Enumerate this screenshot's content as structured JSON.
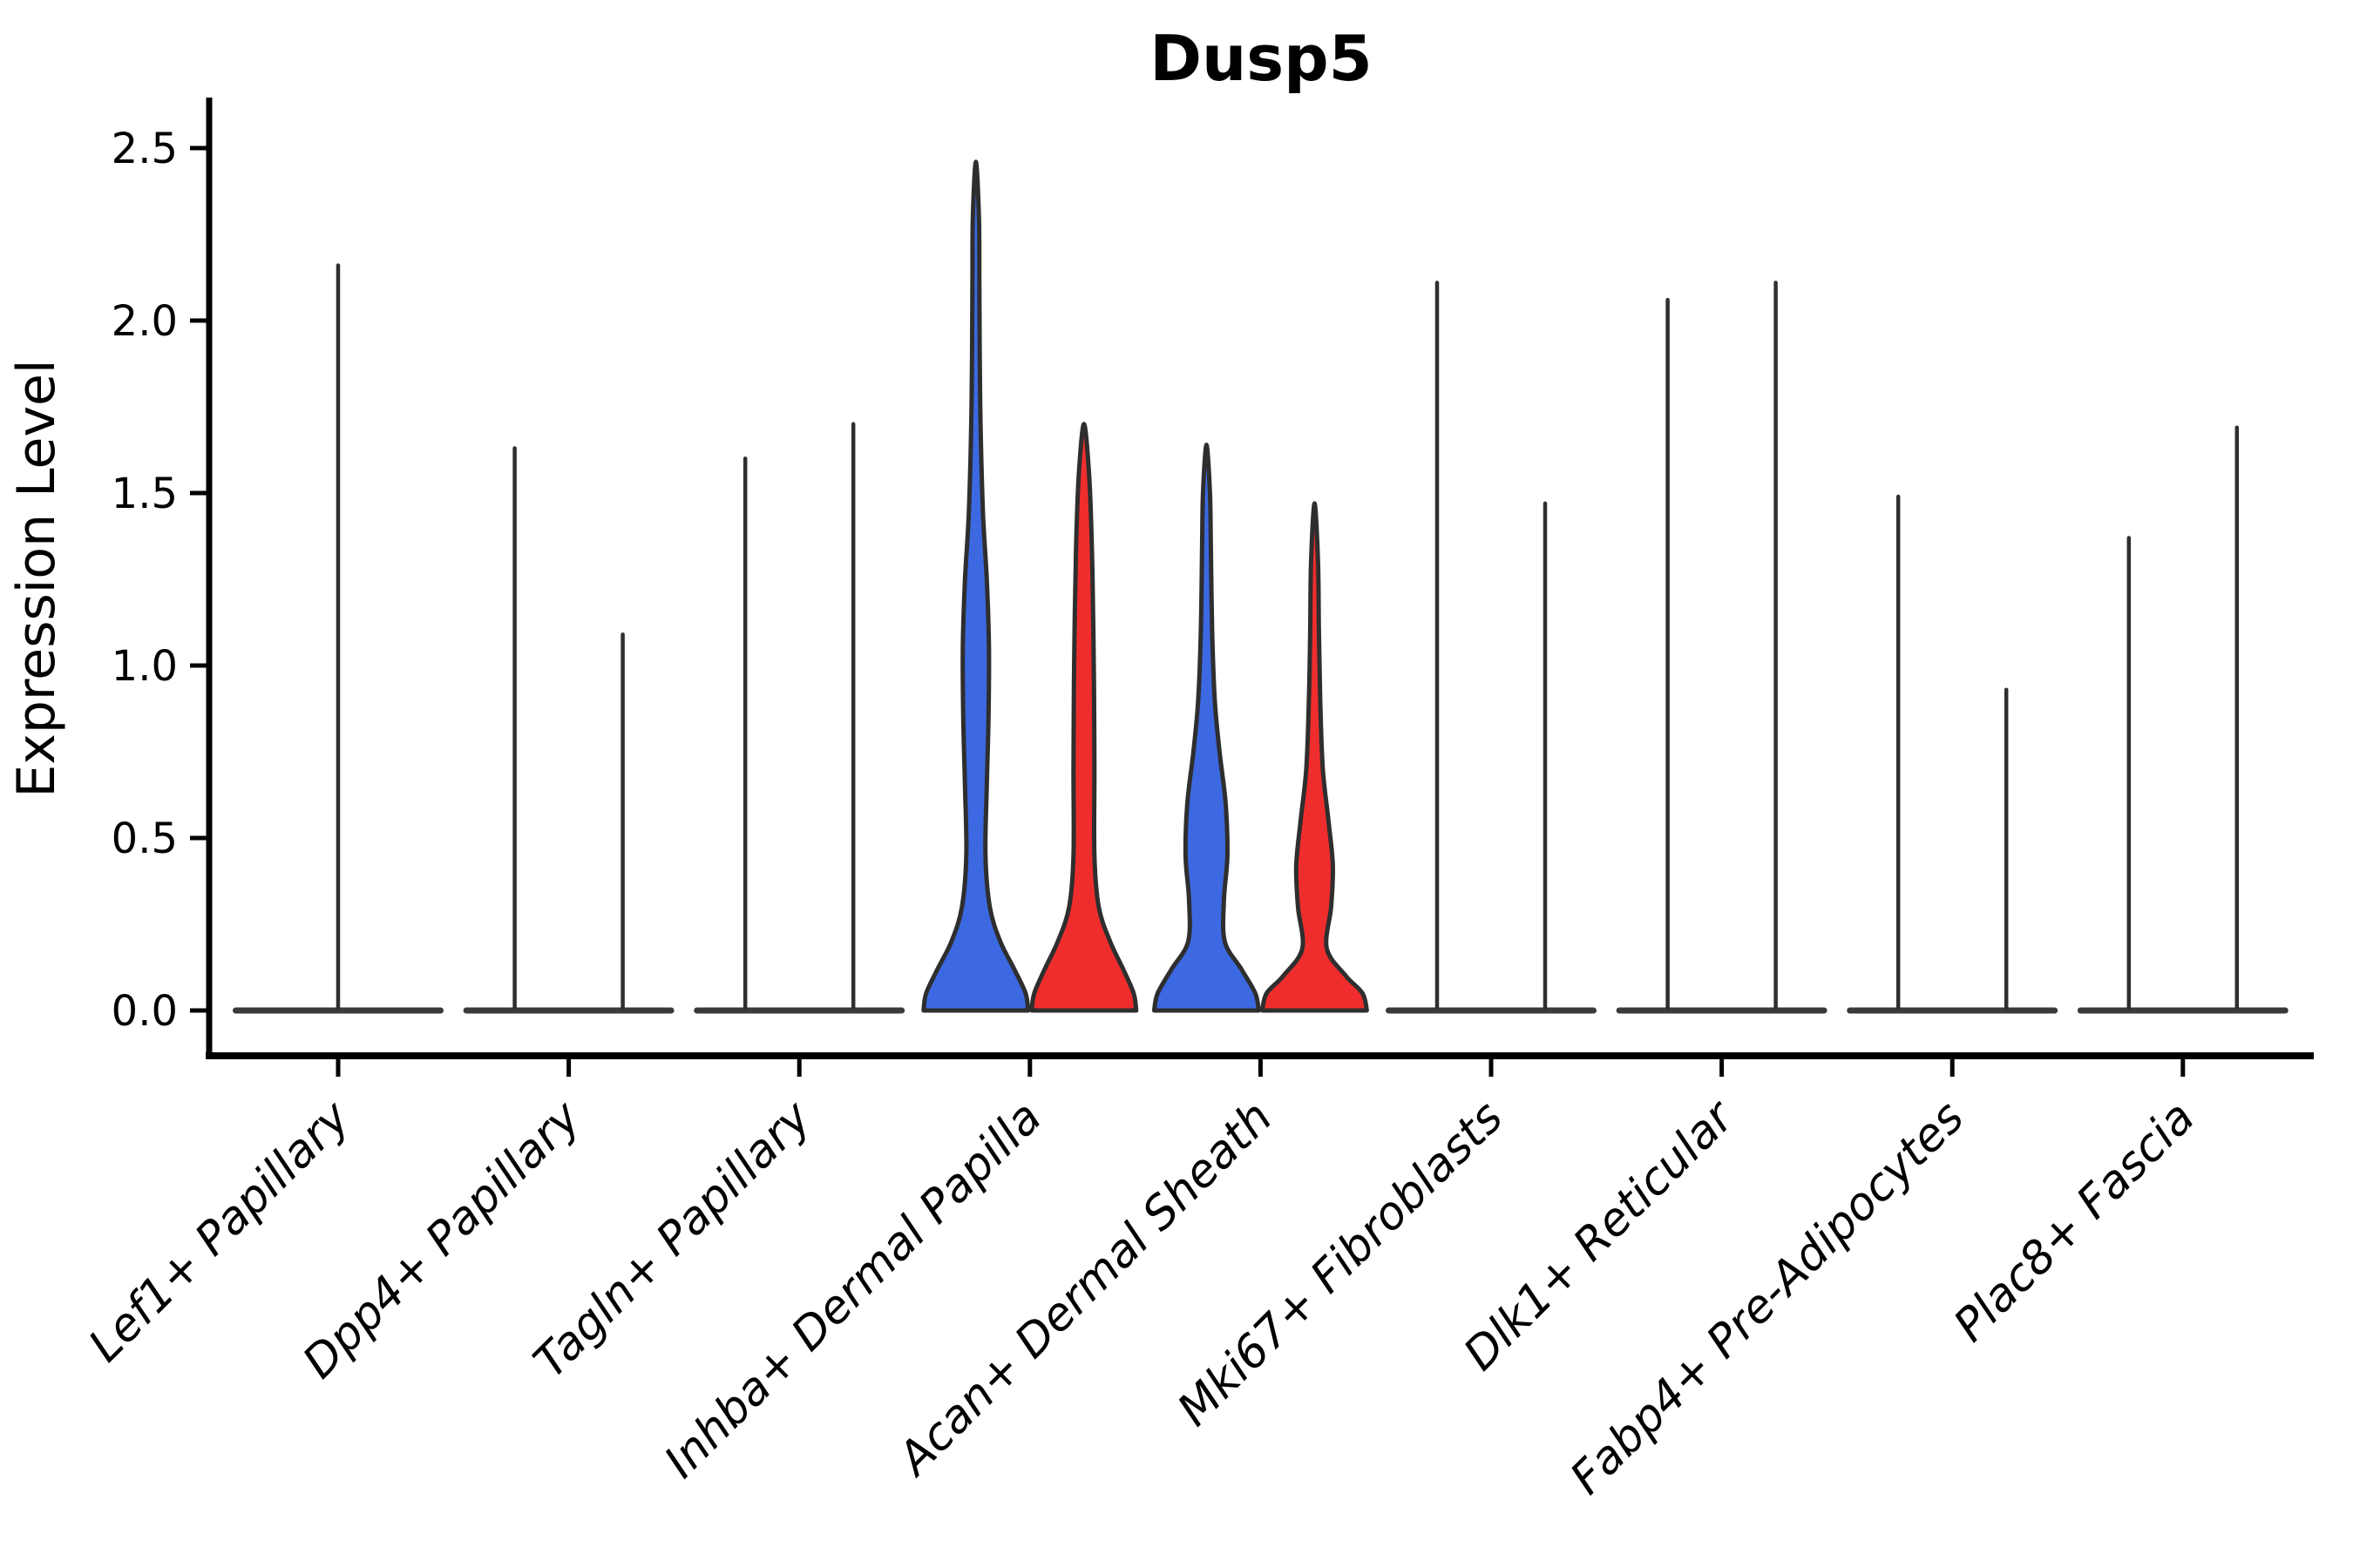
{
  "page": {
    "background": "#ffffff"
  },
  "chart_data": {
    "type": "violin",
    "title": "Dusp5",
    "ylabel": "Expression Level",
    "xlabel": "",
    "ylim": [
      0,
      2.65
    ],
    "yticks": [
      0.0,
      0.5,
      1.0,
      1.5,
      2.0,
      2.5
    ],
    "ytick_labels": [
      "0.0",
      "0.5",
      "1.0",
      "1.5",
      "2.0",
      "2.5"
    ],
    "grid": false,
    "legend_position": "none",
    "x_label_rotation_deg": 45,
    "categories": [
      "Lef1+ Papillary",
      "Dpp4+ Papillary",
      "Tagln+ Papillary",
      "Inhba+ Dermal Papilla",
      "Acan+ Dermal Sheath",
      "Mki67+ Fibroblasts",
      "Dlk1+ Reticular",
      "Fabp4+ Pre-Adipocytes",
      "Plac8+ Fascia"
    ],
    "series": [
      {
        "name": "group-blue",
        "color": "#3C69E1",
        "max_expression": [
          2.16,
          1.63,
          1.6,
          2.46,
          1.64,
          2.11,
          2.06,
          1.49,
          1.37
        ]
      },
      {
        "name": "group-red",
        "color": "#F02D2D",
        "max_expression": [
          2.16,
          1.09,
          1.7,
          1.7,
          1.47,
          1.47,
          2.11,
          0.93,
          1.69
        ]
      }
    ],
    "outline_color": "#2E2E2E",
    "baseline_color": "#3A3A3A",
    "note": "Most cluster/group violins collapse to a zero-expression baseline with a thin density spike; only Inhba+ Dermal Papilla and Acan+ Dermal Sheath show filled blue/red violin bodies.",
    "violins": [
      {
        "category": 0,
        "group": "both",
        "offset": 0,
        "style": "spike",
        "max": 2.16
      },
      {
        "category": 1,
        "group": "blue",
        "offset": -1,
        "style": "spike",
        "max": 1.63
      },
      {
        "category": 1,
        "group": "red",
        "offset": 1,
        "style": "spike",
        "max": 1.09
      },
      {
        "category": 2,
        "group": "blue",
        "offset": -1,
        "style": "spike",
        "max": 1.6
      },
      {
        "category": 2,
        "group": "red",
        "offset": 1,
        "style": "spike",
        "max": 1.7
      },
      {
        "category": 3,
        "group": "blue",
        "offset": -1,
        "style": "body",
        "max": 2.46,
        "profile": [
          [
            0,
            60
          ],
          [
            0.05,
            57
          ],
          [
            0.12,
            44
          ],
          [
            0.2,
            28
          ],
          [
            0.3,
            16
          ],
          [
            0.45,
            11
          ],
          [
            0.65,
            12.5
          ],
          [
            0.85,
            14.5
          ],
          [
            1.05,
            15
          ],
          [
            1.25,
            12.5
          ],
          [
            1.45,
            8
          ],
          [
            1.75,
            5
          ],
          [
            2.1,
            4
          ],
          [
            2.3,
            3.5
          ],
          [
            2.46,
            0
          ]
        ]
      },
      {
        "category": 3,
        "group": "red",
        "offset": 1,
        "style": "body",
        "max": 1.7,
        "profile": [
          [
            0,
            60
          ],
          [
            0.05,
            57
          ],
          [
            0.12,
            45
          ],
          [
            0.2,
            30
          ],
          [
            0.3,
            17
          ],
          [
            0.45,
            12
          ],
          [
            0.7,
            12
          ],
          [
            0.95,
            11.5
          ],
          [
            1.15,
            10.5
          ],
          [
            1.35,
            9
          ],
          [
            1.55,
            6
          ],
          [
            1.7,
            0
          ]
        ]
      },
      {
        "category": 4,
        "group": "blue",
        "offset": -1,
        "style": "body",
        "max": 1.64,
        "profile": [
          [
            0,
            60
          ],
          [
            0.05,
            56
          ],
          [
            0.12,
            40
          ],
          [
            0.2,
            21
          ],
          [
            0.32,
            20
          ],
          [
            0.45,
            24
          ],
          [
            0.6,
            22
          ],
          [
            0.75,
            15
          ],
          [
            0.9,
            9.5
          ],
          [
            1.1,
            6.5
          ],
          [
            1.35,
            5
          ],
          [
            1.5,
            4
          ],
          [
            1.64,
            0
          ]
        ]
      },
      {
        "category": 4,
        "group": "red",
        "offset": 1,
        "style": "body",
        "max": 1.47,
        "profile": [
          [
            0,
            60
          ],
          [
            0.05,
            55
          ],
          [
            0.1,
            36
          ],
          [
            0.18,
            14
          ],
          [
            0.3,
            19
          ],
          [
            0.42,
            21
          ],
          [
            0.55,
            16
          ],
          [
            0.7,
            9.5
          ],
          [
            0.9,
            6.5
          ],
          [
            1.1,
            5
          ],
          [
            1.3,
            4
          ],
          [
            1.47,
            0
          ]
        ]
      },
      {
        "category": 5,
        "group": "blue",
        "offset": -1,
        "style": "spike",
        "max": 2.11
      },
      {
        "category": 5,
        "group": "red",
        "offset": 1,
        "style": "spike",
        "max": 1.47
      },
      {
        "category": 6,
        "group": "blue",
        "offset": -1,
        "style": "spike",
        "max": 2.06
      },
      {
        "category": 6,
        "group": "red",
        "offset": 1,
        "style": "spike",
        "max": 2.11
      },
      {
        "category": 7,
        "group": "blue",
        "offset": -1,
        "style": "spike",
        "max": 1.49
      },
      {
        "category": 7,
        "group": "red",
        "offset": 1,
        "style": "spike",
        "max": 0.93
      },
      {
        "category": 8,
        "group": "blue",
        "offset": -1,
        "style": "spike",
        "max": 1.37
      },
      {
        "category": 8,
        "group": "red",
        "offset": 1,
        "style": "spike",
        "max": 1.69
      }
    ]
  }
}
